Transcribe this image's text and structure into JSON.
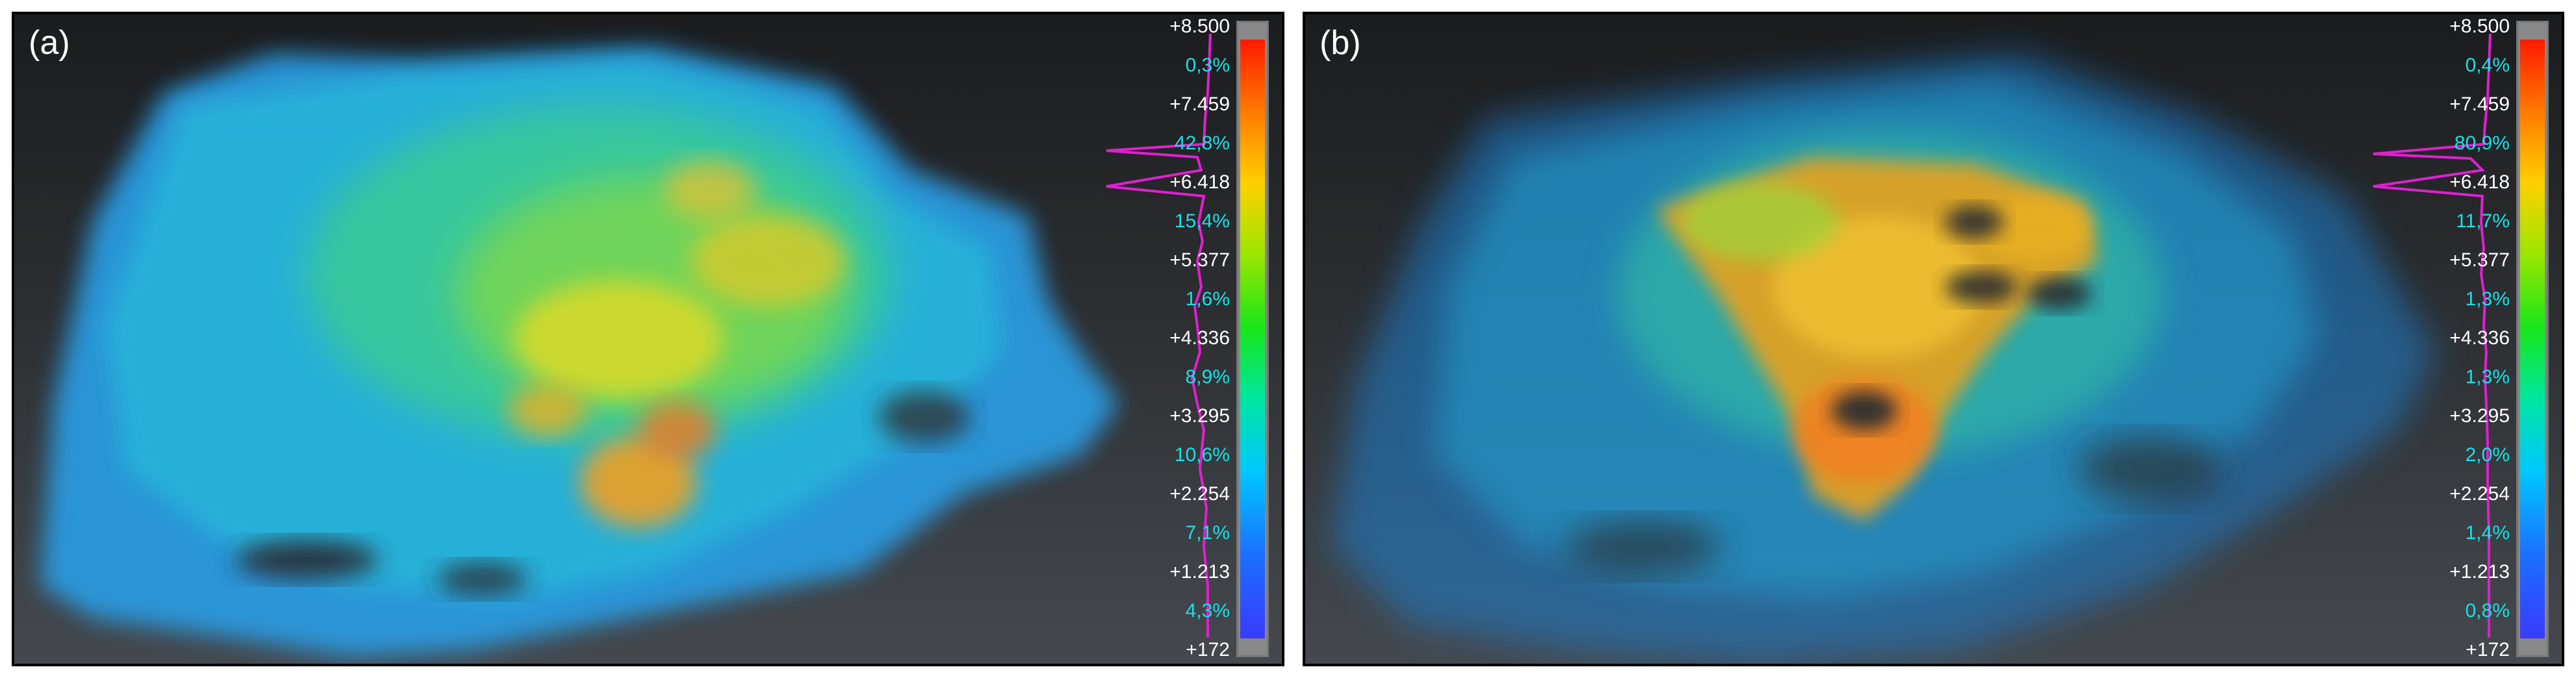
{
  "panels": [
    {
      "label": "(a)",
      "scale_values": [
        "+8.500",
        "+7.459",
        "+6.418",
        "+5.377",
        "+4.336",
        "+3.295",
        "+2.254",
        "+1.213",
        "+172"
      ],
      "scale_percents": [
        "0,3%",
        "42,8%",
        "15,4%",
        "1,6%",
        "8,9%",
        "10,6%",
        "7,1%",
        "4,3%"
      ]
    },
    {
      "label": "(b)",
      "scale_values": [
        "+8.500",
        "+7.459",
        "+6.418",
        "+5.377",
        "+4.336",
        "+3.295",
        "+2.254",
        "+1.213",
        "+172"
      ],
      "scale_percents": [
        "0,4%",
        "80,9%",
        "11,7%",
        "1,3%",
        "1,3%",
        "2,0%",
        "1,4%",
        "0,8%"
      ]
    }
  ],
  "colors": {
    "histogram": "#e020d0",
    "value_text": "#ffffff",
    "percent_text": "#19e0e6",
    "background_top": "#1b1c1e",
    "background_bottom": "#45494e"
  }
}
